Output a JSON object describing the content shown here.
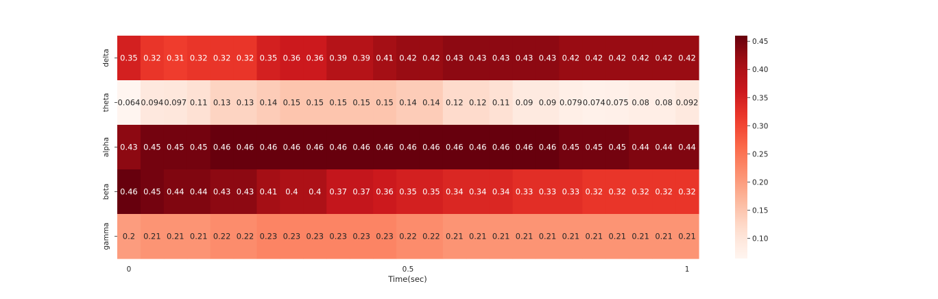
{
  "chart_data": {
    "type": "heatmap",
    "title": "",
    "xlabel": "Time(sec)",
    "ylabel": "",
    "rows": [
      "delta",
      "theta",
      "alpha",
      "beta",
      "gamma"
    ],
    "x_tick_labels": [
      {
        "col": 0,
        "label": "0"
      },
      {
        "col": 12,
        "label": "0.5"
      },
      {
        "col": 24,
        "label": "1"
      }
    ],
    "values": [
      [
        0.35,
        0.32,
        0.31,
        0.32,
        0.32,
        0.32,
        0.35,
        0.36,
        0.36,
        0.39,
        0.39,
        0.41,
        0.42,
        0.42,
        0.43,
        0.43,
        0.43,
        0.43,
        0.43,
        0.42,
        0.42,
        0.42,
        0.42,
        0.42,
        0.42
      ],
      [
        0.064,
        0.094,
        0.097,
        0.11,
        0.13,
        0.13,
        0.14,
        0.15,
        0.15,
        0.15,
        0.15,
        0.15,
        0.14,
        0.14,
        0.12,
        0.12,
        0.11,
        0.09,
        0.09,
        0.079,
        0.074,
        0.075,
        0.08,
        0.08,
        0.092
      ],
      [
        0.43,
        0.45,
        0.45,
        0.45,
        0.46,
        0.46,
        0.46,
        0.46,
        0.46,
        0.46,
        0.46,
        0.46,
        0.46,
        0.46,
        0.46,
        0.46,
        0.46,
        0.46,
        0.46,
        0.45,
        0.45,
        0.45,
        0.44,
        0.44,
        0.44
      ],
      [
        0.46,
        0.45,
        0.44,
        0.44,
        0.43,
        0.43,
        0.41,
        0.4,
        0.4,
        0.37,
        0.37,
        0.36,
        0.35,
        0.35,
        0.34,
        0.34,
        0.34,
        0.33,
        0.33,
        0.33,
        0.32,
        0.32,
        0.32,
        0.32,
        0.32
      ],
      [
        0.2,
        0.21,
        0.21,
        0.21,
        0.22,
        0.22,
        0.23,
        0.23,
        0.23,
        0.23,
        0.23,
        0.23,
        0.22,
        0.22,
        0.21,
        0.21,
        0.21,
        0.21,
        0.21,
        0.21,
        0.21,
        0.21,
        0.21,
        0.21,
        0.21
      ]
    ],
    "vmin": 0.064,
    "vmax": 0.46,
    "colormap": "Reds",
    "colorbar_ticks": [
      "0.10",
      "0.15",
      "0.20",
      "0.25",
      "0.30",
      "0.35",
      "0.40",
      "0.45"
    ],
    "annotations": true
  }
}
